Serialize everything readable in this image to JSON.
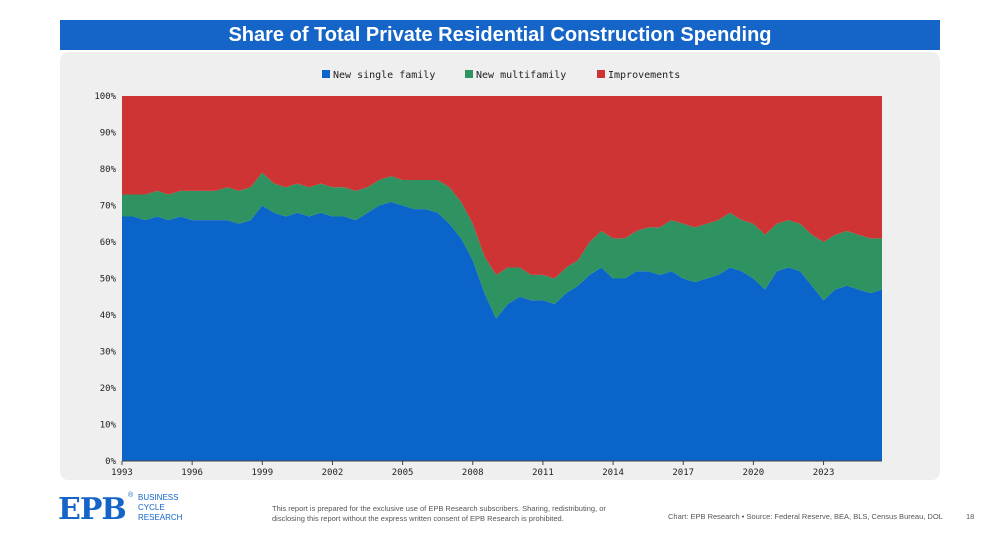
{
  "title": "Share of Total Private Residential Construction Spending",
  "chart_data": {
    "type": "area",
    "stacked": true,
    "title": "Share of Total Private Residential Construction Spending",
    "xlabel": "",
    "ylabel": "",
    "ylim": [
      0,
      100
    ],
    "xlim": [
      1993.0,
      2025.5
    ],
    "y_ticks": [
      "0%",
      "10%",
      "20%",
      "30%",
      "40%",
      "50%",
      "60%",
      "70%",
      "80%",
      "90%",
      "100%"
    ],
    "x_ticks": [
      "1993",
      "1996",
      "1999",
      "2002",
      "2005",
      "2008",
      "2011",
      "2014",
      "2017",
      "2020",
      "2023"
    ],
    "legend": [
      "New single family",
      "New multifamily",
      "Improvements"
    ],
    "colors": {
      "single": "#0b64c9",
      "multi": "#2e9360",
      "improve": "#cf3434"
    },
    "x": [
      1993.0,
      1993.5,
      1994.0,
      1994.5,
      1995.0,
      1995.5,
      1996.0,
      1996.5,
      1997.0,
      1997.5,
      1998.0,
      1998.5,
      1999.0,
      1999.5,
      2000.0,
      2000.5,
      2001.0,
      2001.5,
      2002.0,
      2002.5,
      2003.0,
      2003.5,
      2004.0,
      2004.5,
      2005.0,
      2005.5,
      2006.0,
      2006.5,
      2007.0,
      2007.5,
      2008.0,
      2008.5,
      2009.0,
      2009.5,
      2010.0,
      2010.5,
      2011.0,
      2011.5,
      2012.0,
      2012.5,
      2013.0,
      2013.5,
      2014.0,
      2014.5,
      2015.0,
      2015.5,
      2016.0,
      2016.5,
      2017.0,
      2017.5,
      2018.0,
      2018.5,
      2019.0,
      2019.5,
      2020.0,
      2020.5,
      2021.0,
      2021.5,
      2022.0,
      2022.5,
      2023.0,
      2023.5,
      2024.0,
      2024.5,
      2025.0,
      2025.5
    ],
    "series": [
      {
        "name": "New single family",
        "values": [
          67,
          67,
          66,
          67,
          66,
          67,
          66,
          66,
          66,
          66,
          65,
          66,
          70,
          68,
          67,
          68,
          67,
          68,
          67,
          67,
          66,
          68,
          70,
          71,
          70,
          69,
          69,
          68,
          65,
          61,
          55,
          46,
          39,
          43,
          45,
          44,
          44,
          43,
          46,
          48,
          51,
          53,
          50,
          50,
          52,
          52,
          51,
          52,
          50,
          49,
          50,
          51,
          53,
          52,
          50,
          47,
          52,
          53,
          52,
          48,
          44,
          47,
          48,
          47,
          46,
          47
        ]
      },
      {
        "name": "New multifamily",
        "values": [
          6,
          6,
          7,
          7,
          7,
          7,
          8,
          8,
          8,
          9,
          9,
          9,
          9,
          8,
          8,
          8,
          8,
          8,
          8,
          8,
          8,
          7,
          7,
          7,
          7,
          8,
          8,
          9,
          10,
          10,
          10,
          10,
          12,
          10,
          8,
          7,
          7,
          7,
          7,
          7,
          9,
          10,
          11,
          11,
          11,
          12,
          13,
          14,
          15,
          15,
          15,
          15,
          15,
          14,
          15,
          15,
          13,
          13,
          13,
          14,
          16,
          15,
          15,
          15,
          15,
          14
        ]
      },
      {
        "name": "Improvements",
        "values": [
          27,
          27,
          27,
          26,
          27,
          26,
          26,
          26,
          26,
          25,
          26,
          25,
          21,
          24,
          25,
          24,
          25,
          24,
          25,
          25,
          26,
          25,
          23,
          22,
          23,
          23,
          23,
          23,
          25,
          29,
          35,
          44,
          49,
          47,
          47,
          49,
          49,
          50,
          47,
          45,
          40,
          37,
          39,
          39,
          37,
          36,
          36,
          34,
          35,
          36,
          35,
          34,
          32,
          34,
          35,
          38,
          35,
          34,
          35,
          38,
          40,
          38,
          37,
          38,
          39,
          39
        ]
      }
    ]
  },
  "footer": {
    "logo": "EPB",
    "logo_mark": "®",
    "brand_line1": "BUSINESS",
    "brand_line2": "CYCLE",
    "brand_line3": "RESEARCH",
    "disclaimer": "This report is prepared for the exclusive use of EPB Research subscribers. Sharing, redistributing, or disclosing this report without the express written consent of EPB Research is prohibited.",
    "source": "Chart: EPB Research  •  Source: Federal Reserve, BEA, BLS, Census Bureau, DOL",
    "page": "18"
  }
}
